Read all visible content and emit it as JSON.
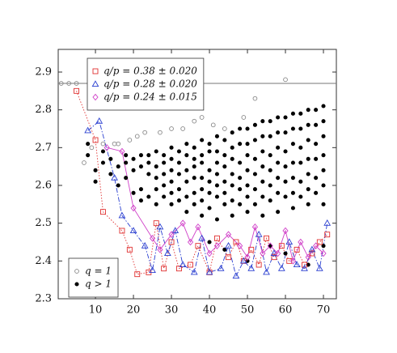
{
  "chart_data": {
    "type": "scatter",
    "xlim": [
      0.2,
      73.4
    ],
    "ylim": [
      2.3,
      2.96
    ],
    "xticks": [
      10,
      20,
      30,
      40,
      50,
      60,
      70
    ],
    "yticks": [
      2.3,
      2.4,
      2.5,
      2.6,
      2.7,
      2.8,
      2.9
    ],
    "hlines": [
      2.87
    ],
    "series": [
      {
        "name": "q = 1",
        "color": "#888888",
        "marker": "open-circle",
        "line": "none",
        "legend": "lower left",
        "x": [
          1,
          3,
          5,
          7,
          9,
          12,
          15,
          16,
          19,
          21,
          23,
          27,
          30,
          33,
          36,
          38,
          41,
          44,
          49,
          52,
          60
        ],
        "values": [
          2.87,
          2.87,
          2.87,
          2.66,
          2.7,
          2.71,
          2.71,
          2.71,
          2.72,
          2.73,
          2.74,
          2.74,
          2.75,
          2.75,
          2.77,
          2.78,
          2.76,
          2.75,
          2.78,
          2.83,
          2.88
        ]
      },
      {
        "name": "q > 1",
        "color": "#000000",
        "marker": "dot",
        "line": "none",
        "legend": "lower left",
        "x": [
          8,
          8,
          10,
          10,
          12,
          12,
          14,
          14,
          16,
          16,
          18,
          18,
          18,
          20,
          20,
          20,
          22,
          22,
          22,
          22,
          24,
          24,
          24,
          24,
          26,
          26,
          26,
          26,
          26,
          28,
          28,
          28,
          28,
          28,
          30,
          30,
          30,
          30,
          30,
          30,
          32,
          32,
          32,
          32,
          32,
          34,
          34,
          34,
          34,
          34,
          34,
          36,
          36,
          36,
          36,
          36,
          36,
          38,
          38,
          38,
          38,
          38,
          38,
          38,
          40,
          40,
          40,
          40,
          40,
          40,
          40,
          42,
          42,
          42,
          42,
          42,
          42,
          42,
          44,
          44,
          44,
          44,
          44,
          44,
          44,
          46,
          46,
          46,
          46,
          46,
          46,
          46,
          48,
          48,
          48,
          48,
          48,
          48,
          50,
          50,
          50,
          50,
          50,
          50,
          50,
          50,
          52,
          52,
          52,
          52,
          52,
          52,
          54,
          54,
          54,
          54,
          54,
          54,
          54,
          56,
          56,
          56,
          56,
          56,
          56,
          56,
          58,
          58,
          58,
          58,
          58,
          58,
          58,
          60,
          60,
          60,
          60,
          60,
          60,
          60,
          62,
          62,
          62,
          62,
          62,
          62,
          62,
          64,
          64,
          64,
          64,
          64,
          64,
          66,
          66,
          66,
          66,
          66,
          66,
          66,
          66,
          68,
          68,
          68,
          68,
          68,
          68,
          70,
          70,
          70,
          70,
          70,
          70,
          70,
          70
        ],
        "values": [
          2.71,
          2.68,
          2.64,
          2.61,
          2.69,
          2.66,
          2.67,
          2.63,
          2.65,
          2.6,
          2.68,
          2.66,
          2.62,
          2.67,
          2.64,
          2.58,
          2.68,
          2.65,
          2.59,
          2.56,
          2.68,
          2.66,
          2.63,
          2.57,
          2.69,
          2.65,
          2.62,
          2.59,
          2.55,
          2.68,
          2.66,
          2.63,
          2.6,
          2.57,
          2.7,
          2.67,
          2.64,
          2.61,
          2.58,
          2.55,
          2.69,
          2.66,
          2.63,
          2.59,
          2.56,
          2.71,
          2.68,
          2.64,
          2.61,
          2.57,
          2.53,
          2.7,
          2.67,
          2.65,
          2.62,
          2.58,
          2.55,
          2.72,
          2.68,
          2.66,
          2.62,
          2.59,
          2.56,
          2.52,
          2.71,
          2.69,
          2.64,
          2.61,
          2.58,
          2.54,
          2.45,
          2.73,
          2.69,
          2.66,
          2.63,
          2.6,
          2.57,
          2.51,
          2.72,
          2.68,
          2.65,
          2.61,
          2.58,
          2.55,
          2.43,
          2.74,
          2.7,
          2.67,
          2.63,
          2.6,
          2.56,
          2.52,
          2.75,
          2.71,
          2.66,
          2.62,
          2.59,
          2.55,
          2.75,
          2.71,
          2.68,
          2.64,
          2.6,
          2.57,
          2.53,
          2.4,
          2.76,
          2.72,
          2.67,
          2.63,
          2.59,
          2.55,
          2.77,
          2.73,
          2.69,
          2.65,
          2.61,
          2.57,
          2.52,
          2.77,
          2.73,
          2.68,
          2.64,
          2.6,
          2.56,
          2.44,
          2.78,
          2.74,
          2.7,
          2.66,
          2.62,
          2.58,
          2.53,
          2.78,
          2.74,
          2.69,
          2.65,
          2.61,
          2.57,
          2.42,
          2.79,
          2.75,
          2.71,
          2.66,
          2.62,
          2.58,
          2.54,
          2.79,
          2.75,
          2.7,
          2.66,
          2.61,
          2.57,
          2.8,
          2.76,
          2.72,
          2.67,
          2.63,
          2.59,
          2.55,
          2.39,
          2.8,
          2.76,
          2.71,
          2.67,
          2.62,
          2.58,
          2.81,
          2.77,
          2.73,
          2.68,
          2.64,
          2.6,
          2.55,
          2.44
        ]
      },
      {
        "name": "q/p = 0.38 ± 0.020",
        "color": "#e03030",
        "marker": "open-square",
        "line": "dotted",
        "legend": "upper left",
        "x": [
          5,
          10,
          12,
          17,
          19,
          21,
          24,
          26,
          28,
          30,
          32,
          35,
          37,
          40,
          42,
          45,
          47,
          49,
          51,
          53,
          55,
          57,
          59,
          61,
          63,
          65,
          67,
          69,
          71
        ],
        "values": [
          2.85,
          2.72,
          2.53,
          2.48,
          2.43,
          2.365,
          2.37,
          2.5,
          2.38,
          2.45,
          2.38,
          2.39,
          2.44,
          2.37,
          2.46,
          2.41,
          2.45,
          2.4,
          2.43,
          2.39,
          2.46,
          2.41,
          2.44,
          2.4,
          2.43,
          2.39,
          2.42,
          2.45,
          2.47
        ]
      },
      {
        "name": "q/p = 0.28 ± 0.020",
        "color": "#2a3fd0",
        "marker": "open-triangle",
        "line": "dashdot",
        "legend": "upper left",
        "x": [
          8,
          11,
          15,
          17,
          20,
          23,
          25,
          27,
          29,
          31,
          33,
          36,
          38,
          40,
          43,
          45,
          47,
          49,
          51,
          53,
          55,
          57,
          59,
          61,
          63,
          65,
          67,
          69,
          71
        ],
        "values": [
          2.745,
          2.77,
          2.62,
          2.52,
          2.48,
          2.44,
          2.375,
          2.49,
          2.42,
          2.48,
          2.39,
          2.37,
          2.46,
          2.37,
          2.38,
          2.44,
          2.36,
          2.4,
          2.38,
          2.47,
          2.37,
          2.42,
          2.38,
          2.45,
          2.39,
          2.38,
          2.43,
          2.38,
          2.5
        ]
      },
      {
        "name": "q/p = 0.24 ± 0.015",
        "color": "#d040c8",
        "marker": "open-diamond",
        "line": "solid",
        "legend": "upper left",
        "x": [
          13,
          17,
          20,
          25,
          27,
          30,
          33,
          35,
          37,
          40,
          42,
          45,
          48,
          50,
          52,
          54,
          56,
          58,
          60,
          62,
          64,
          66,
          68,
          70
        ],
        "values": [
          2.7,
          2.69,
          2.54,
          2.46,
          2.43,
          2.47,
          2.5,
          2.45,
          2.49,
          2.42,
          2.44,
          2.47,
          2.44,
          2.41,
          2.49,
          2.42,
          2.44,
          2.42,
          2.48,
          2.4,
          2.45,
          2.41,
          2.44,
          2.42
        ]
      }
    ]
  }
}
